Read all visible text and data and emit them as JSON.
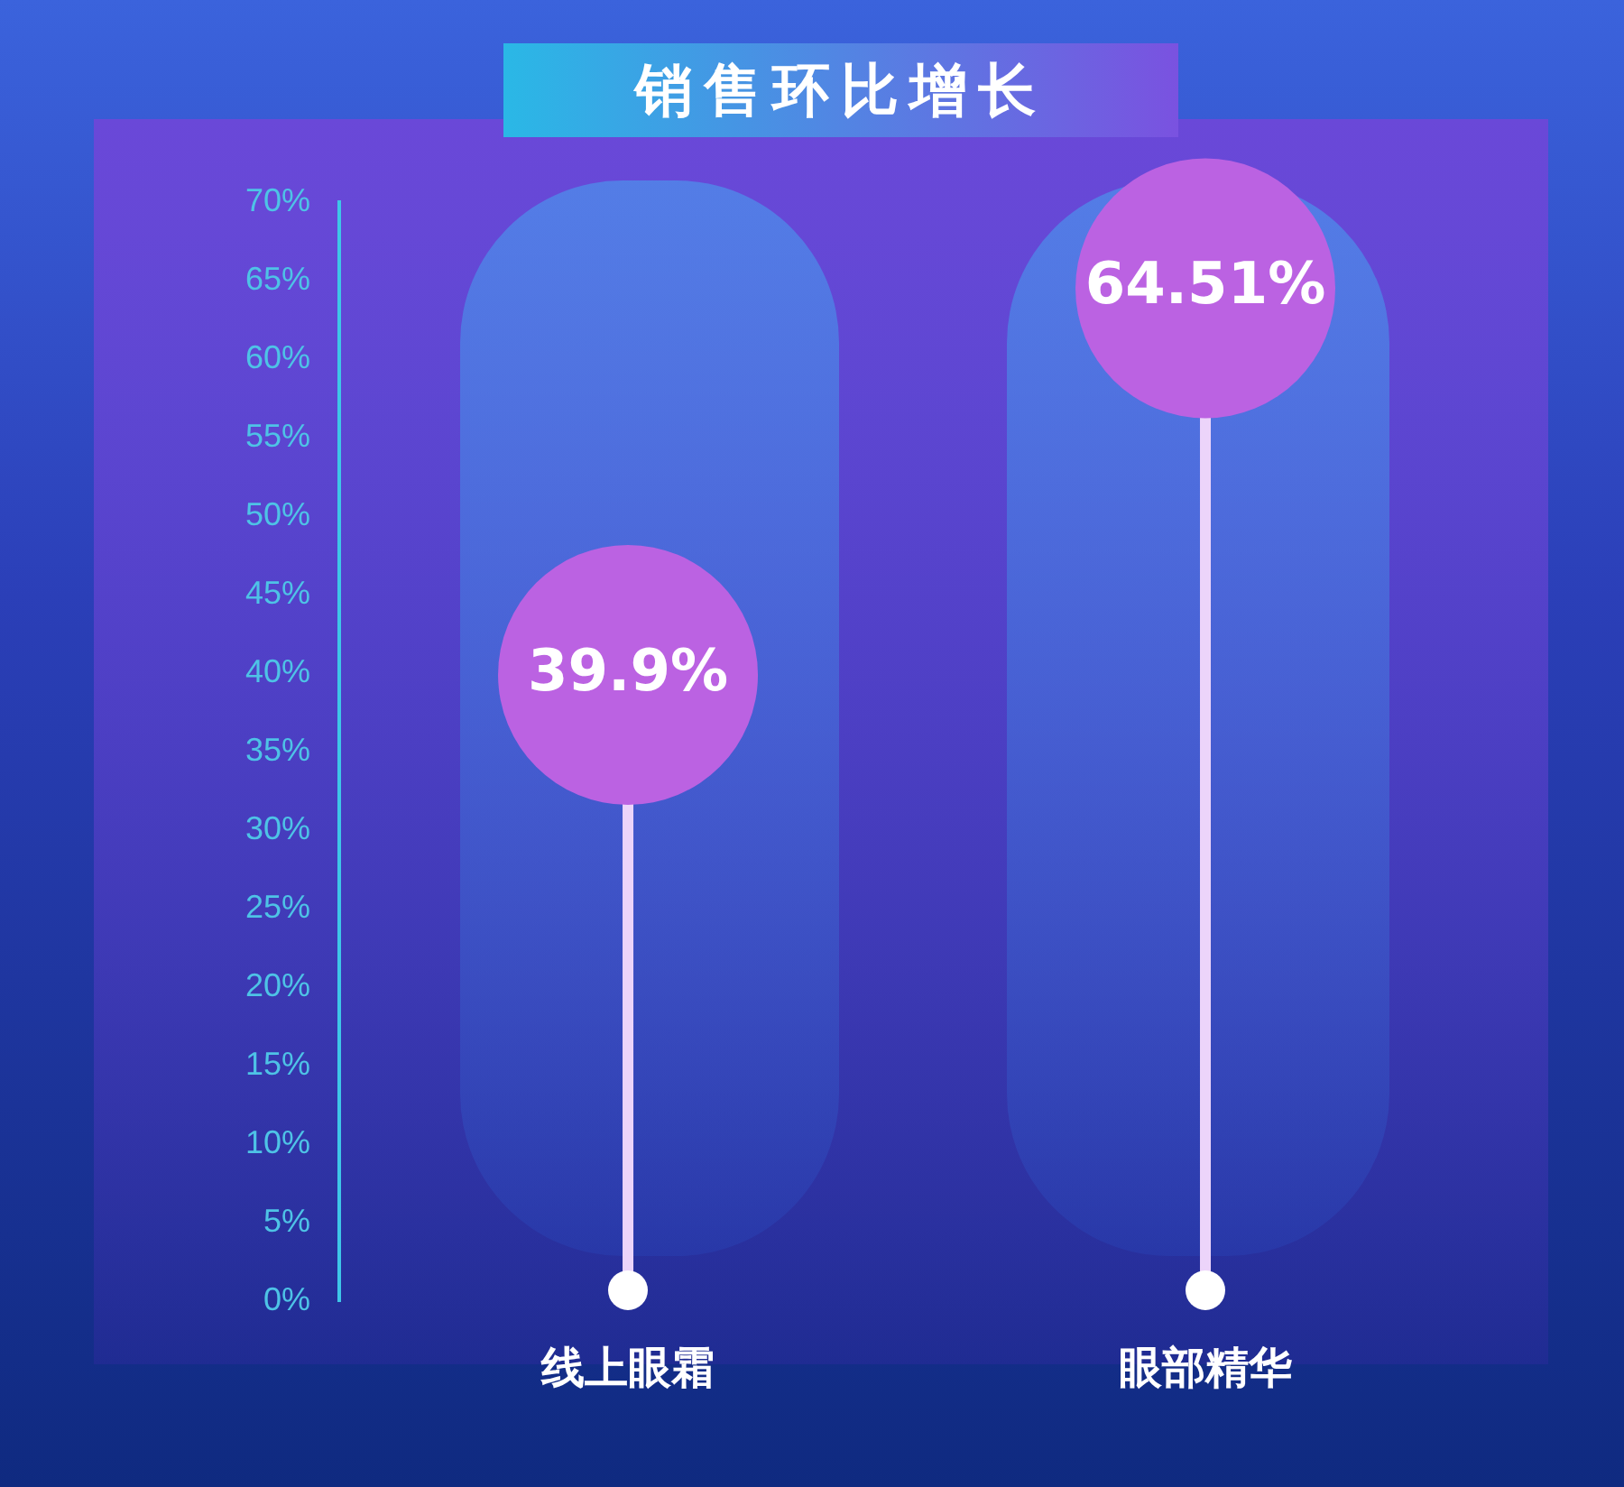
{
  "chart_data": {
    "type": "lollipop",
    "title": "销售环比增长",
    "categories": [
      "线上眼霜",
      "眼部精华"
    ],
    "values": [
      39.9,
      64.51
    ],
    "value_labels": [
      "39.9%",
      "64.51%"
    ],
    "color": "#bb62e2",
    "ylim": [
      0,
      70
    ],
    "yticks": [
      {
        "value": 0,
        "label": "0%"
      },
      {
        "value": 5,
        "label": "5%"
      },
      {
        "value": 10,
        "label": "10%"
      },
      {
        "value": 15,
        "label": "15%"
      },
      {
        "value": 20,
        "label": "20%"
      },
      {
        "value": 25,
        "label": "25%"
      },
      {
        "value": 30,
        "label": "30%"
      },
      {
        "value": 35,
        "label": "35%"
      },
      {
        "value": 40,
        "label": "40%"
      },
      {
        "value": 45,
        "label": "45%"
      },
      {
        "value": 50,
        "label": "50%"
      },
      {
        "value": 55,
        "label": "55%"
      },
      {
        "value": 60,
        "label": "60%"
      },
      {
        "value": 65,
        "label": "65%"
      },
      {
        "value": 70,
        "label": "70%"
      }
    ]
  }
}
